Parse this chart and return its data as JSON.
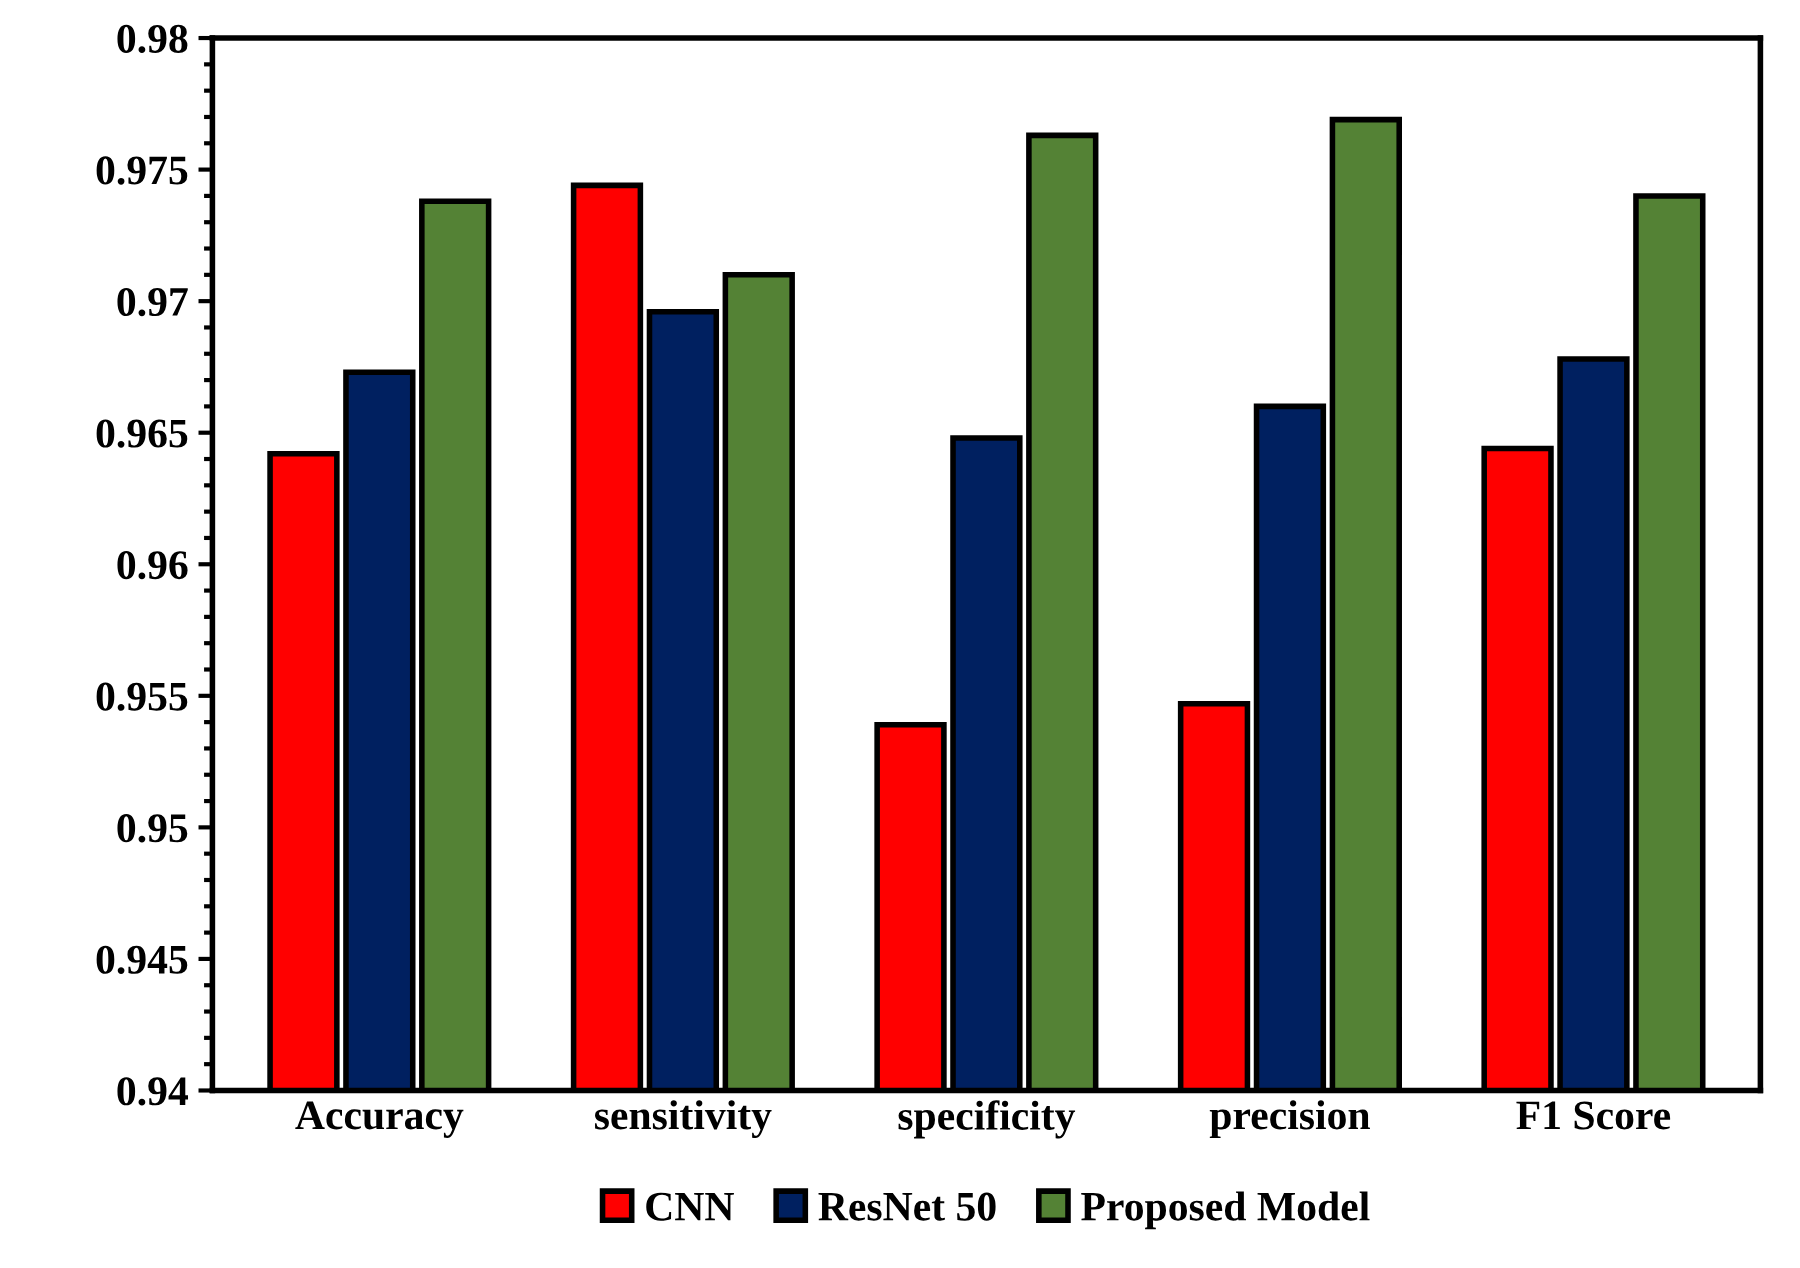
{
  "chart_data": {
    "type": "bar",
    "categories": [
      "Accuracy",
      "sensitivity",
      "specificity",
      "precision",
      "F1 Score"
    ],
    "series": [
      {
        "name": "CNN",
        "color": "#ff0000",
        "values": [
          0.9642,
          0.9744,
          0.9539,
          0.9547,
          0.9644
        ]
      },
      {
        "name": "ResNet 50",
        "color": "#002060",
        "values": [
          0.9673,
          0.9696,
          0.9648,
          0.966,
          0.9678
        ]
      },
      {
        "name": "Proposed Model",
        "color": "#548235",
        "values": [
          0.9738,
          0.971,
          0.9763,
          0.9769,
          0.974
        ]
      }
    ],
    "ylim": [
      0.94,
      0.98
    ],
    "yticks": [
      0.94,
      0.945,
      0.95,
      0.955,
      0.96,
      0.965,
      0.97,
      0.975,
      0.98
    ],
    "grid": false,
    "legend": "bottom"
  }
}
